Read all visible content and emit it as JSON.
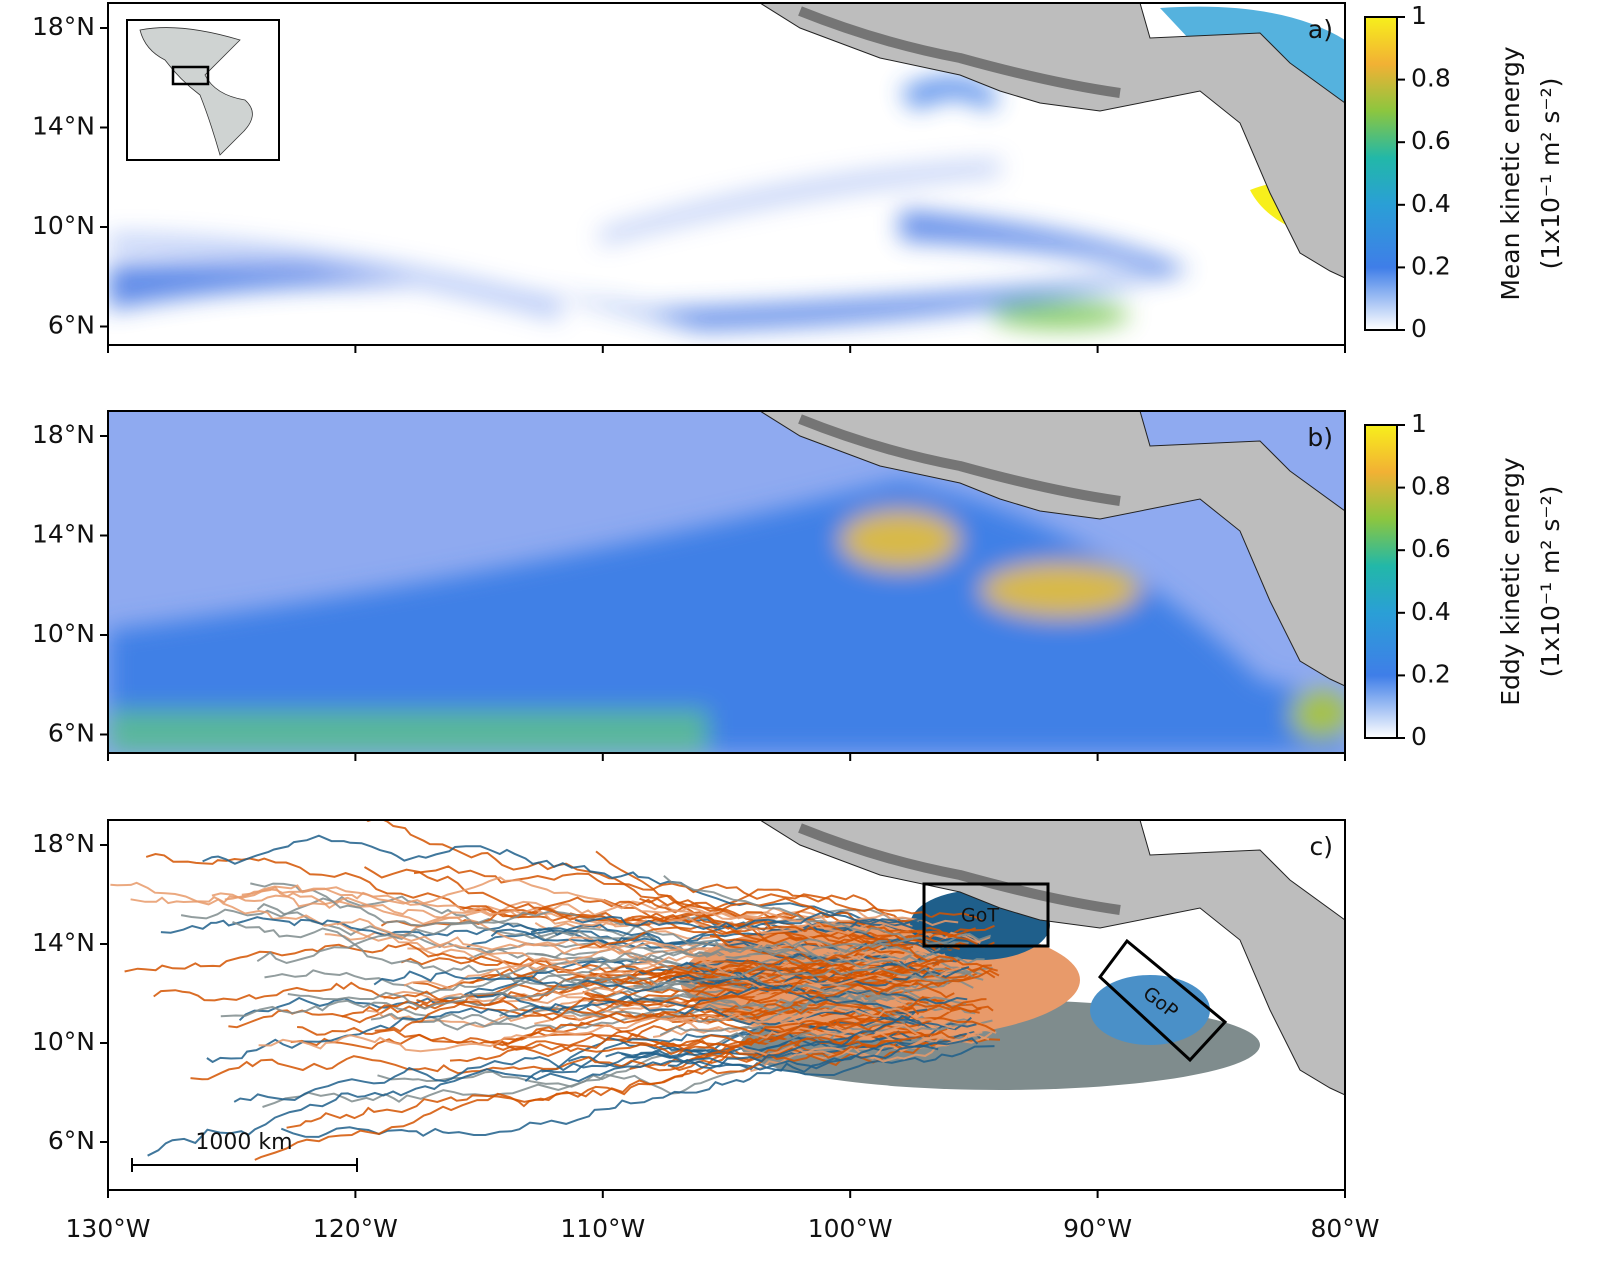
{
  "panels": [
    {
      "label": "a)",
      "colorbar": {
        "title": "Mean kinetic energy",
        "units": "(1x10⁻¹ m² s⁻²)",
        "ticks": [
          0,
          0.2,
          0.4,
          0.6,
          0.8,
          1
        ]
      }
    },
    {
      "label": "b)",
      "colorbar": {
        "title": "Eddy kinetic energy",
        "units": "(1x10⁻¹ m² s⁻²)",
        "ticks": [
          0,
          0.2,
          0.4,
          0.6,
          0.8,
          1
        ]
      }
    },
    {
      "label": "c)"
    }
  ],
  "lat_ticks": [
    "18°N",
    "14°N",
    "10°N",
    "6°N"
  ],
  "lon_ticks": [
    "130°W",
    "120°W",
    "110°W",
    "100°W",
    "90°W",
    "80°W"
  ],
  "regions": [
    "GoT",
    "GoP"
  ],
  "scale_bar": "1000 km"
}
